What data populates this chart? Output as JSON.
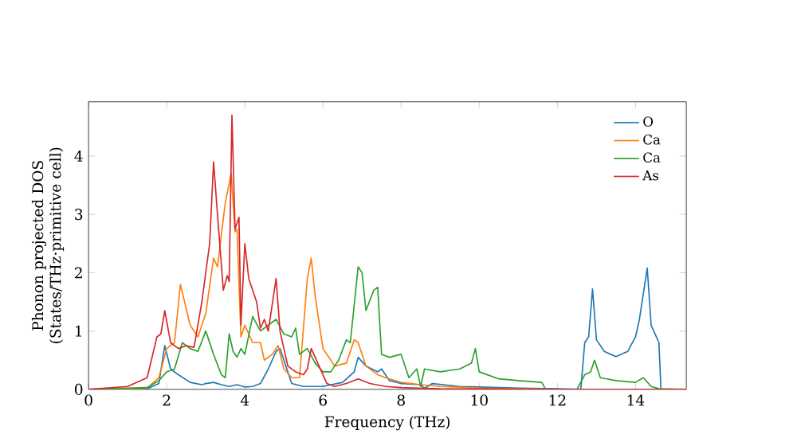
{
  "chart_data": {
    "type": "line",
    "xlabel": "Frequency (THz)",
    "ylabel": "Phonon projected DOS\n(States/THz·primitive cell)",
    "xlim": [
      0,
      15.3
    ],
    "ylim": [
      0,
      4.93
    ],
    "xticks": [
      0,
      2,
      4,
      6,
      8,
      10,
      12,
      14
    ],
    "yticks": [
      0,
      1,
      2,
      3,
      4
    ],
    "legend": "top right",
    "grid": false,
    "marker": "none",
    "line_style": "solid",
    "series": [
      {
        "name": "O",
        "color": "#1f77b4",
        "x": [
          0,
          1,
          1.5,
          1.8,
          1.95,
          2.1,
          2.3,
          2.6,
          2.9,
          3.0,
          3.2,
          3.4,
          3.6,
          3.8,
          4.0,
          4.2,
          4.4,
          4.6,
          4.8,
          4.9,
          5.0,
          5.2,
          5.5,
          5.8,
          6.0,
          6.5,
          6.8,
          6.9,
          7.1,
          7.4,
          7.5,
          7.7,
          8,
          8.5,
          8.6,
          8.8,
          9.5,
          10,
          11,
          12,
          12.6,
          12.7,
          12.8,
          12.9,
          13.0,
          13.2,
          13.5,
          13.8,
          14.0,
          14.1,
          14.3,
          14.4,
          14.6,
          14.65,
          15.3
        ],
        "values": [
          0,
          0,
          0.01,
          0.1,
          0.75,
          0.35,
          0.25,
          0.12,
          0.08,
          0.1,
          0.12,
          0.08,
          0.05,
          0.08,
          0.04,
          0.05,
          0.1,
          0.35,
          0.65,
          0.7,
          0.5,
          0.1,
          0.05,
          0.05,
          0.05,
          0.12,
          0.3,
          0.55,
          0.4,
          0.3,
          0.35,
          0.15,
          0.1,
          0.08,
          0.02,
          0.1,
          0.05,
          0.04,
          0.02,
          0.01,
          0,
          0.8,
          0.9,
          1.72,
          0.85,
          0.65,
          0.56,
          0.65,
          0.9,
          1.2,
          2.08,
          1.1,
          0.8,
          0,
          0
        ]
      },
      {
        "name": "Ca",
        "color": "#ff7f0e",
        "x": [
          0,
          1.5,
          1.8,
          2.0,
          2.2,
          2.35,
          2.6,
          2.8,
          3.0,
          3.2,
          3.3,
          3.5,
          3.65,
          3.75,
          3.8,
          3.9,
          4.0,
          4.2,
          4.4,
          4.5,
          4.7,
          4.85,
          5.0,
          5.2,
          5.4,
          5.6,
          5.7,
          5.8,
          6.0,
          6.3,
          6.6,
          6.8,
          6.9,
          7.1,
          7.4,
          7.6,
          8,
          8.5,
          9,
          10,
          11,
          12,
          15.3
        ],
        "values": [
          0,
          0.02,
          0.2,
          0.7,
          0.8,
          1.8,
          1.1,
          0.9,
          1.3,
          2.25,
          2.1,
          3.2,
          3.7,
          2.7,
          2.75,
          0.9,
          1.1,
          0.8,
          0.8,
          0.5,
          0.6,
          0.75,
          0.35,
          0.2,
          0.2,
          1.9,
          2.25,
          1.6,
          0.7,
          0.4,
          0.45,
          0.85,
          0.8,
          0.4,
          0.25,
          0.2,
          0.12,
          0.08,
          0.05,
          0.02,
          0.01,
          0,
          0
        ]
      },
      {
        "name": "Ca",
        "color": "#2ca02c",
        "x": [
          0,
          1.5,
          1.8,
          2.0,
          2.2,
          2.4,
          2.6,
          2.8,
          3.0,
          3.2,
          3.4,
          3.5,
          3.6,
          3.7,
          3.8,
          3.9,
          4.0,
          4.2,
          4.4,
          4.6,
          4.8,
          5.0,
          5.2,
          5.3,
          5.4,
          5.6,
          5.8,
          6.0,
          6.2,
          6.4,
          6.6,
          6.7,
          6.9,
          7.0,
          7.1,
          7.3,
          7.4,
          7.5,
          7.7,
          8.0,
          8.2,
          8.4,
          8.5,
          8.6,
          9.0,
          9.5,
          9.8,
          9.9,
          10.0,
          10.5,
          11.0,
          11.6,
          11.7,
          12.5,
          12.7,
          12.85,
          12.95,
          13.1,
          13.5,
          14.0,
          14.2,
          14.4,
          14.6,
          15.3
        ],
        "values": [
          0,
          0.03,
          0.15,
          0.3,
          0.35,
          0.8,
          0.7,
          0.65,
          1.0,
          0.6,
          0.25,
          0.2,
          0.95,
          0.65,
          0.55,
          0.7,
          0.6,
          1.25,
          1.0,
          1.1,
          1.2,
          0.95,
          0.9,
          1.05,
          0.6,
          0.7,
          0.45,
          0.3,
          0.3,
          0.5,
          0.85,
          0.8,
          2.1,
          2.0,
          1.35,
          1.7,
          1.75,
          0.6,
          0.55,
          0.6,
          0.2,
          0.35,
          0.05,
          0.35,
          0.3,
          0.35,
          0.45,
          0.7,
          0.3,
          0.18,
          0.15,
          0.12,
          0,
          0,
          0.25,
          0.3,
          0.5,
          0.2,
          0.15,
          0.12,
          0.2,
          0.05,
          0.01,
          0
        ]
      },
      {
        "name": "As",
        "color": "#d62728",
        "x": [
          0,
          1.0,
          1.5,
          1.75,
          1.85,
          1.95,
          2.1,
          2.3,
          2.5,
          2.7,
          2.9,
          3.1,
          3.2,
          3.3,
          3.45,
          3.55,
          3.6,
          3.67,
          3.75,
          3.85,
          3.9,
          4.0,
          4.1,
          4.3,
          4.4,
          4.5,
          4.6,
          4.8,
          4.9,
          5.1,
          5.3,
          5.5,
          5.6,
          5.7,
          5.9,
          6.1,
          6.3,
          6.6,
          6.9,
          7.2,
          7.6,
          8.0,
          9,
          12,
          15.3
        ],
        "values": [
          0,
          0.05,
          0.2,
          0.9,
          0.95,
          1.35,
          0.8,
          0.7,
          0.75,
          0.72,
          1.5,
          2.5,
          3.9,
          3.0,
          1.7,
          1.95,
          1.85,
          4.7,
          2.75,
          2.95,
          1.1,
          2.5,
          1.9,
          1.5,
          1.05,
          1.2,
          1.0,
          1.9,
          1.0,
          0.4,
          0.3,
          0.25,
          0.35,
          0.7,
          0.4,
          0.1,
          0.05,
          0.1,
          0.18,
          0.1,
          0.05,
          0.03,
          0.01,
          0,
          0
        ]
      }
    ]
  }
}
